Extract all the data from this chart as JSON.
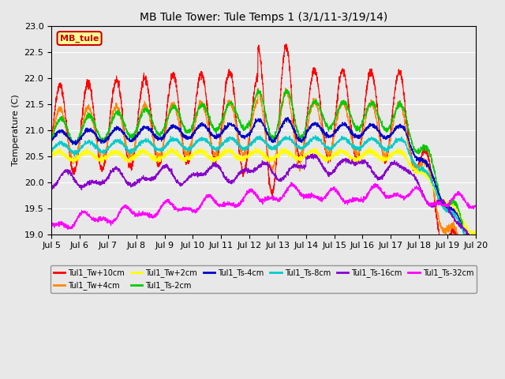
{
  "title": "MB Tule Tower: Tule Temps 1 (3/1/11-3/19/14)",
  "ylabel": "Temperature (C)",
  "ylim": [
    19.0,
    23.0
  ],
  "yticks": [
    19.0,
    19.5,
    20.0,
    20.5,
    21.0,
    21.5,
    22.0,
    22.5,
    23.0
  ],
  "bg_color": "#e8e8e8",
  "legend_label": "MB_tule",
  "legend_box_color": "#ffff99",
  "legend_box_edge": "#cc0000",
  "series": [
    {
      "label": "Tul1_Tw+10cm",
      "color": "#ff0000"
    },
    {
      "label": "Tul1_Tw+4cm",
      "color": "#ff8800"
    },
    {
      "label": "Tul1_Tw+2cm",
      "color": "#ffff00"
    },
    {
      "label": "Tul1_Ts-2cm",
      "color": "#00cc00"
    },
    {
      "label": "Tul1_Ts-4cm",
      "color": "#0000cc"
    },
    {
      "label": "Tul1_Ts-8cm",
      "color": "#00cccc"
    },
    {
      "label": "Tul1_Ts-16cm",
      "color": "#8800cc"
    },
    {
      "label": "Tul1_Ts-32cm",
      "color": "#ff00ff"
    }
  ],
  "x_start": 5,
  "x_end": 20,
  "xtick_labels": [
    "Jul 5",
    "Jul 6",
    "Jul 7",
    "Jul 8",
    "Jul 9",
    "Jul 10",
    "Jul 11",
    "Jul 12",
    "Jul 13",
    "Jul 14",
    "Jul 15",
    "Jul 16",
    "Jul 17",
    "Jul 18",
    "Jul 19",
    "Jul 20"
  ],
  "xtick_positions": [
    5,
    6,
    7,
    8,
    9,
    10,
    11,
    12,
    13,
    14,
    15,
    16,
    17,
    18,
    19,
    20
  ]
}
